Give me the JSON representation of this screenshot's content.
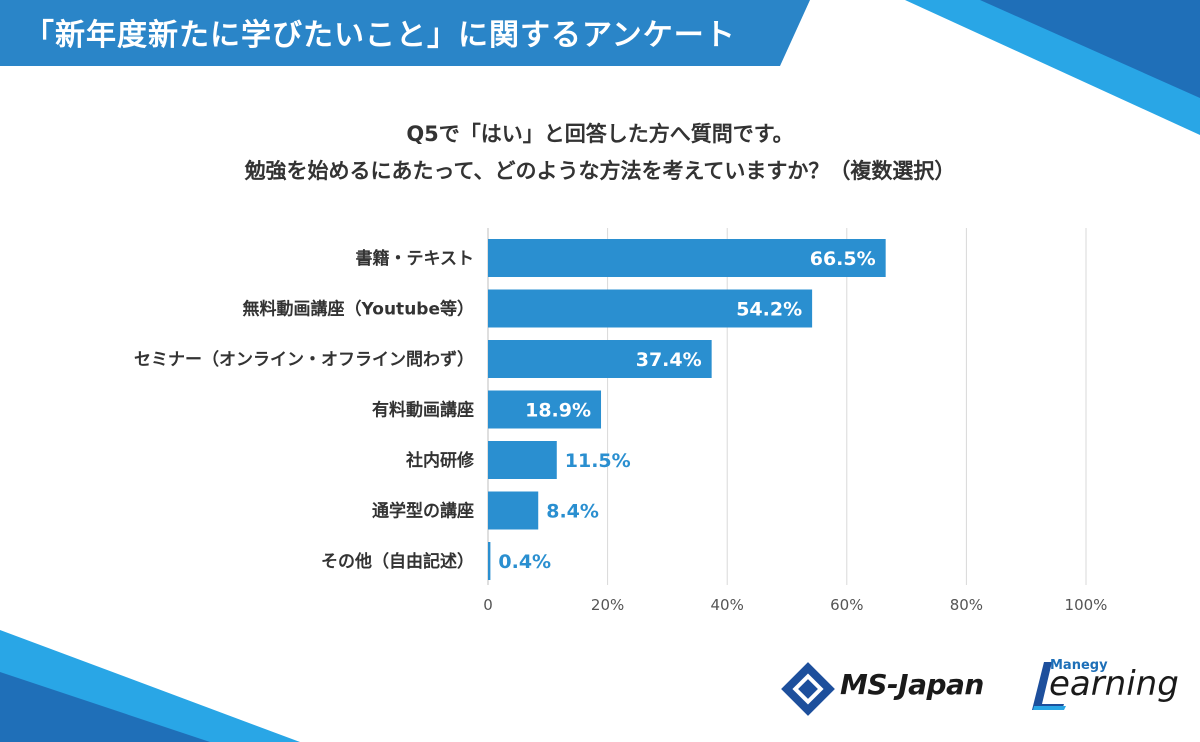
{
  "header": {
    "title": "「新年度新たに学びたいこと」に関するアンケート"
  },
  "question": {
    "line1": "Q5で「はい」と回答した方へ質問です。",
    "line2": "勉強を始めるにあたって、どのような方法を考えていますか？（複数選択）"
  },
  "colors": {
    "bar": "#2a8fd0",
    "value_inside": "#ffffff",
    "value_outside": "#2a8fd0",
    "grid": "#d9d9d9",
    "banner": "#2a85c8"
  },
  "chart_data": {
    "type": "bar",
    "orientation": "horizontal",
    "categories": [
      "書籍・テキスト",
      "無料動画講座（Youtube等）",
      "セミナー（オンライン・オフライン問わず）",
      "有料動画講座",
      "社内研修",
      "通学型の講座",
      "その他（自由記述）"
    ],
    "values": [
      66.5,
      54.2,
      37.4,
      18.9,
      11.5,
      8.4,
      0.4
    ],
    "value_labels": [
      "66.5%",
      "54.2%",
      "37.4%",
      "18.9%",
      "11.5%",
      "8.4%",
      "0.4%"
    ],
    "xlim": [
      0,
      100
    ],
    "x_ticks": [
      0,
      20,
      40,
      60,
      80,
      100
    ],
    "x_tick_labels": [
      "0",
      "20%",
      "40%",
      "60%",
      "80%",
      "100%"
    ],
    "grid": true
  },
  "logos": {
    "ms_japan": "MS-Japan",
    "manegy": "Manegy",
    "learning": "Learning"
  }
}
